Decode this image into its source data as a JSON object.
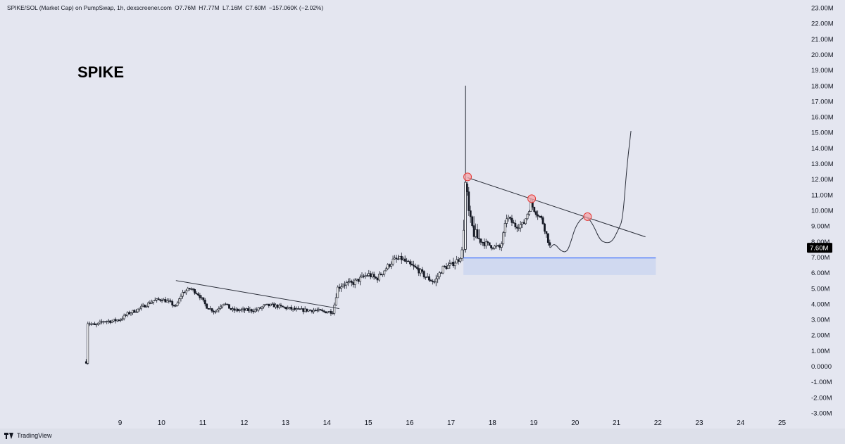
{
  "header": {
    "pair": "SPIKE/SOL (Market Cap) on PumpSwap, 1h, dexscreener.com",
    "open": "O7.76M",
    "high": "H7.77M",
    "low": "L7.16M",
    "close": "C7.60M",
    "change": "−157.060K (−2.02%)"
  },
  "annotation_label": "SPIKE",
  "footer": {
    "brand": "TradingView",
    "logo_icon": "tradingview-logo-icon"
  },
  "price_badge": {
    "text": "7.60M",
    "value": 7.6,
    "color": "#000000"
  },
  "colors": {
    "background": "#e4e6f0",
    "candle": "#131722",
    "support_line": "#2962ff",
    "support_zone": "#cdd7ef",
    "marker_fill": "#f4a3a8",
    "marker_stroke": "#e53935"
  },
  "chart_data": {
    "type": "candlestick",
    "title": "",
    "xlabel": "",
    "ylabel": "",
    "y_unit": "market cap (M)",
    "ylim": [
      -3,
      23
    ],
    "xlim": [
      8,
      25.5
    ],
    "y_ticks": [
      23,
      22,
      21,
      20,
      19,
      18,
      17,
      16,
      15,
      14,
      13,
      12,
      11,
      10,
      9,
      8,
      7,
      6,
      5,
      4,
      3,
      2,
      1,
      0,
      -1,
      -2,
      -3
    ],
    "y_tick_labels": [
      "23.00M",
      "22.00M",
      "21.00M",
      "20.00M",
      "19.00M",
      "18.00M",
      "17.00M",
      "16.00M",
      "15.00M",
      "14.00M",
      "13.00M",
      "12.00M",
      "11.00M",
      "10.00M",
      "9.00M",
      "8.00M",
      "7.00M",
      "6.00M",
      "5.00M",
      "4.00M",
      "3.00M",
      "2.00M",
      "1.00M",
      "0.0000",
      "-1.00M",
      "-2.00M",
      "-3.00M"
    ],
    "x_ticks": [
      9,
      10,
      11,
      12,
      13,
      14,
      15,
      16,
      17,
      18,
      19,
      20,
      21,
      22,
      23,
      24,
      25
    ],
    "x_tick_labels": [
      "9",
      "10",
      "11",
      "12",
      "13",
      "14",
      "15",
      "16",
      "17",
      "18",
      "19",
      "20",
      "21",
      "22",
      "23",
      "24",
      "25"
    ],
    "grid": false,
    "close_path": [
      [
        8.18,
        0.3
      ],
      [
        8.22,
        2.8
      ],
      [
        8.4,
        2.6
      ],
      [
        8.6,
        2.9
      ],
      [
        8.8,
        2.9
      ],
      [
        9.0,
        3.0
      ],
      [
        9.2,
        3.4
      ],
      [
        9.4,
        3.6
      ],
      [
        9.6,
        3.9
      ],
      [
        9.8,
        4.2
      ],
      [
        10.0,
        4.3
      ],
      [
        10.2,
        4.1
      ],
      [
        10.35,
        3.8
      ],
      [
        10.5,
        4.7
      ],
      [
        10.7,
        5.0
      ],
      [
        10.9,
        4.6
      ],
      [
        11.1,
        3.8
      ],
      [
        11.3,
        3.5
      ],
      [
        11.5,
        4.1
      ],
      [
        11.7,
        3.6
      ],
      [
        11.9,
        3.6
      ],
      [
        12.1,
        3.6
      ],
      [
        12.3,
        3.6
      ],
      [
        12.5,
        3.9
      ],
      [
        12.7,
        3.9
      ],
      [
        12.9,
        3.8
      ],
      [
        13.1,
        3.7
      ],
      [
        13.3,
        3.6
      ],
      [
        13.5,
        3.6
      ],
      [
        13.7,
        3.6
      ],
      [
        13.9,
        3.5
      ],
      [
        14.15,
        3.5
      ],
      [
        14.25,
        5.0
      ],
      [
        14.4,
        5.3
      ],
      [
        14.6,
        5.3
      ],
      [
        14.8,
        5.6
      ],
      [
        15.0,
        5.9
      ],
      [
        15.2,
        5.6
      ],
      [
        15.4,
        6.2
      ],
      [
        15.6,
        6.8
      ],
      [
        15.8,
        6.9
      ],
      [
        16.0,
        6.5
      ],
      [
        16.2,
        6.2
      ],
      [
        16.4,
        5.7
      ],
      [
        16.6,
        5.4
      ],
      [
        16.8,
        6.3
      ],
      [
        17.0,
        6.5
      ],
      [
        17.2,
        6.9
      ],
      [
        17.28,
        7.5
      ],
      [
        17.35,
        11.8
      ],
      [
        17.45,
        9.3
      ],
      [
        17.6,
        8.3
      ],
      [
        17.8,
        7.9
      ],
      [
        18.0,
        7.7
      ],
      [
        18.2,
        7.6
      ],
      [
        18.35,
        9.6
      ],
      [
        18.55,
        9.0
      ],
      [
        18.75,
        9.1
      ],
      [
        18.93,
        10.4
      ],
      [
        19.05,
        9.9
      ],
      [
        19.2,
        9.4
      ],
      [
        19.3,
        8.5
      ],
      [
        19.4,
        7.6
      ]
    ],
    "candles": [
      {
        "x": 17.35,
        "open": 7.5,
        "high": 18.0,
        "low": 7.3,
        "close": 11.8
      }
    ],
    "drawings": {
      "descending_trendline": {
        "start": [
          17.4,
          12.1
        ],
        "end": [
          21.7,
          8.3
        ]
      },
      "early_trendline": {
        "start": [
          10.35,
          5.5
        ],
        "end": [
          14.3,
          3.7
        ]
      },
      "support_level": 6.95,
      "support_zone": {
        "x": [
          17.3,
          21.95
        ],
        "y": [
          5.85,
          6.95
        ]
      },
      "touch_markers": [
        [
          17.4,
          12.15
        ],
        [
          18.95,
          10.75
        ],
        [
          20.3,
          9.6
        ]
      ],
      "projection_path": [
        [
          19.4,
          7.6
        ],
        [
          19.5,
          7.9
        ],
        [
          19.65,
          7.4
        ],
        [
          19.8,
          7.3
        ],
        [
          19.9,
          8.0
        ],
        [
          20.0,
          8.9
        ],
        [
          20.15,
          9.5
        ],
        [
          20.3,
          9.6
        ],
        [
          20.45,
          9.0
        ],
        [
          20.6,
          8.1
        ],
        [
          20.75,
          7.9
        ],
        [
          20.9,
          8.0
        ],
        [
          21.05,
          8.8
        ],
        [
          21.15,
          9.4
        ],
        [
          21.25,
          12.8
        ],
        [
          21.35,
          15.1
        ]
      ]
    }
  }
}
